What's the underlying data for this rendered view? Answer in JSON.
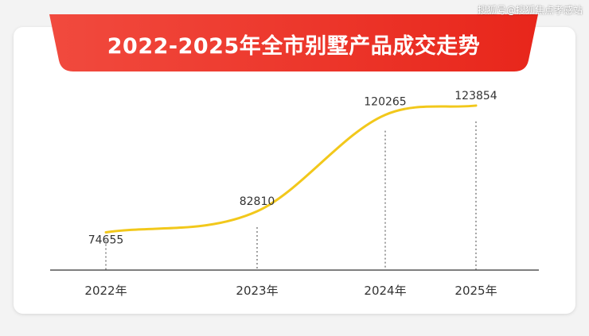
{
  "watermark": "搜狐号@搜狐焦点孝感站",
  "colors": {
    "banner_start": "#f14a3e",
    "banner_end": "#e8261b",
    "line": "#f2c81b",
    "axis": "#555555"
  },
  "chart_data": {
    "type": "line",
    "title": "2022-2025年全市别墅产品成交走势",
    "categories": [
      "2022年",
      "2023年",
      "2024年",
      "2025年"
    ],
    "x": [
      2022,
      2023,
      2024,
      2025
    ],
    "values": [
      74655,
      82810,
      120265,
      123854
    ],
    "ylim": [
      60000,
      130000
    ],
    "grid": false,
    "legend": "none"
  }
}
